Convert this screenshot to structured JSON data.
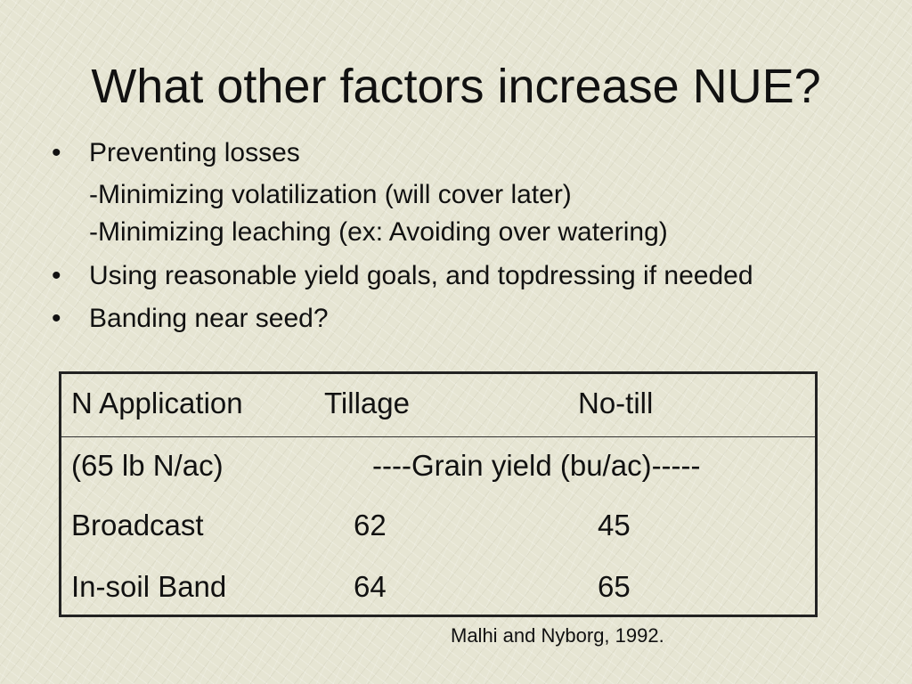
{
  "slide": {
    "title": "What other factors increase NUE?",
    "bullet_marker": "•",
    "bullets": [
      {
        "text": "Preventing losses",
        "subs": [
          "-Minimizing volatilization (will cover later)",
          "-Minimizing leaching (ex: Avoiding over watering)"
        ]
      },
      {
        "text": "Using reasonable yield goals, and topdressing if needed"
      },
      {
        "text": "Banding near seed?"
      }
    ],
    "table": {
      "headers": [
        "N Application",
        "Tillage",
        "No-till"
      ],
      "units_row": [
        "(65 lb N/ac)",
        "----Grain yield (bu/ac)-----"
      ],
      "rows": [
        [
          "Broadcast",
          "62",
          "45"
        ],
        [
          "In-soil Band",
          "64",
          "65"
        ]
      ]
    },
    "citation": "Malhi and Nyborg, 1992."
  }
}
